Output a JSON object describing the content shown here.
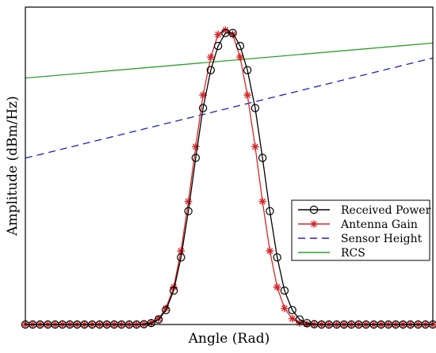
{
  "chart_data": {
    "type": "line",
    "xlabel": "Angle (Rad)",
    "ylabel": "Amplitude (dBm/Hz)",
    "xlim": [
      0,
      1
    ],
    "ylim": [
      0,
      1
    ],
    "ticks_labeled": false,
    "grid": false,
    "legend_position": "bottom-right",
    "series": [
      {
        "name": "Received Power",
        "style": "black-solid-circle",
        "color": "#000000",
        "x": [
          0.0,
          0.018,
          0.036,
          0.055,
          0.073,
          0.091,
          0.109,
          0.127,
          0.145,
          0.164,
          0.182,
          0.2,
          0.218,
          0.236,
          0.255,
          0.273,
          0.291,
          0.309,
          0.327,
          0.345,
          0.364,
          0.382,
          0.4,
          0.418,
          0.436,
          0.455,
          0.473,
          0.491,
          0.509,
          0.527,
          0.545,
          0.564,
          0.582,
          0.6,
          0.618,
          0.636,
          0.655,
          0.673,
          0.691,
          0.709,
          0.727,
          0.745,
          0.764,
          0.782,
          0.8,
          0.818,
          0.836,
          0.855,
          0.873,
          0.891,
          0.909,
          0.927,
          0.945,
          0.964,
          0.982,
          1.0
        ],
        "y": [
          0.0,
          0.0,
          0.0,
          0.0,
          0.0,
          0.0,
          0.0,
          0.0,
          0.0,
          0.0,
          0.0,
          0.0,
          0.0,
          0.0,
          0.0,
          0.0,
          0.001,
          0.005,
          0.017,
          0.049,
          0.115,
          0.228,
          0.385,
          0.566,
          0.735,
          0.864,
          0.946,
          0.99,
          0.99,
          0.946,
          0.864,
          0.735,
          0.566,
          0.385,
          0.228,
          0.115,
          0.049,
          0.017,
          0.005,
          0.001,
          0.0,
          0.0,
          0.0,
          0.0,
          0.0,
          0.0,
          0.0,
          0.0,
          0.0,
          0.0,
          0.0,
          0.0,
          0.0,
          0.0,
          0.0,
          0.0
        ]
      },
      {
        "name": "Antenna Gain",
        "style": "red-solid-star",
        "color": "#d62728",
        "x": [
          0.0,
          0.018,
          0.036,
          0.055,
          0.073,
          0.091,
          0.109,
          0.127,
          0.145,
          0.164,
          0.182,
          0.2,
          0.218,
          0.236,
          0.255,
          0.273,
          0.291,
          0.309,
          0.327,
          0.345,
          0.364,
          0.382,
          0.4,
          0.418,
          0.436,
          0.455,
          0.473,
          0.491,
          0.509,
          0.527,
          0.545,
          0.564,
          0.582,
          0.6,
          0.618,
          0.636,
          0.655,
          0.673,
          0.691,
          0.709,
          0.727,
          0.745,
          0.764,
          0.782,
          0.8,
          0.818,
          0.836,
          0.855,
          0.873,
          0.891,
          0.909,
          0.927,
          0.945,
          0.964,
          0.982,
          1.0
        ],
        "y": [
          0.0,
          0.0,
          0.0,
          0.0,
          0.0,
          0.0,
          0.0,
          0.0,
          0.0,
          0.0,
          0.0,
          0.0,
          0.0,
          0.0,
          0.0,
          0.0,
          0.001,
          0.006,
          0.02,
          0.055,
          0.127,
          0.25,
          0.418,
          0.604,
          0.779,
          0.908,
          0.985,
          1.0,
          0.985,
          0.908,
          0.779,
          0.604,
          0.418,
          0.25,
          0.127,
          0.055,
          0.02,
          0.006,
          0.001,
          0.0,
          0.0,
          0.0,
          0.0,
          0.0,
          0.0,
          0.0,
          0.0,
          0.0,
          0.0,
          0.0,
          0.0,
          0.0,
          0.0,
          0.0,
          0.0,
          0.0
        ]
      },
      {
        "name": "Sensor Height",
        "style": "blue-dashed",
        "color": "#1f1fbf",
        "x": [
          0,
          1
        ],
        "y": [
          0.565,
          0.905
        ]
      },
      {
        "name": "RCS",
        "style": "green-solid",
        "color": "#2ca02c",
        "x": [
          0,
          1
        ],
        "y": [
          0.837,
          0.956
        ]
      }
    ]
  }
}
